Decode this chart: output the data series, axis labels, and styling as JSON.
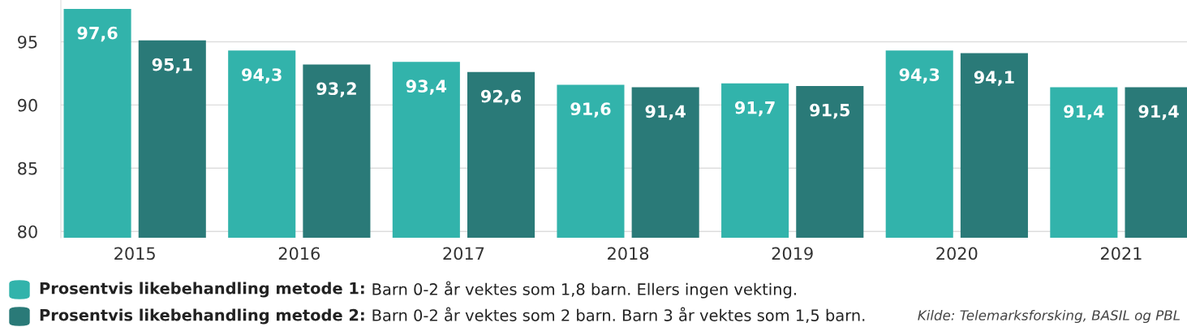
{
  "chart_data": {
    "type": "bar",
    "categories": [
      "2015",
      "2016",
      "2017",
      "2018",
      "2019",
      "2020",
      "2021"
    ],
    "series": [
      {
        "name": "Prosentvis likebehandling metode 1: Barn 0-2 år vektes som 1,8 barn. Ellers ingen vekting.",
        "color": "#32b3ab",
        "values": [
          97.6,
          94.3,
          93.4,
          91.6,
          91.7,
          94.3,
          91.4
        ],
        "value_labels": [
          "97,6",
          "94,3",
          "93,4",
          "91,6",
          "91,7",
          "94,3",
          "91,4"
        ]
      },
      {
        "name": "Prosentvis likebehandling metode 2: Barn 0-2 år vektes som 2 barn. Barn 3 år vektes som 1,5 barn.",
        "color": "#2a7a78",
        "values": [
          95.1,
          93.2,
          92.6,
          91.4,
          91.5,
          94.1,
          91.4
        ],
        "value_labels": [
          "95,1",
          "93,2",
          "92,6",
          "91,4",
          "91,5",
          "94,1",
          "91,4"
        ]
      }
    ],
    "ylim": [
      79.5,
      98.3
    ],
    "yticks": [
      80,
      85,
      90,
      95
    ],
    "grid": "y",
    "legend": "bottom left",
    "annotations": [
      "Kilde: Telemarksforsking, BASIL og PBL"
    ]
  }
}
